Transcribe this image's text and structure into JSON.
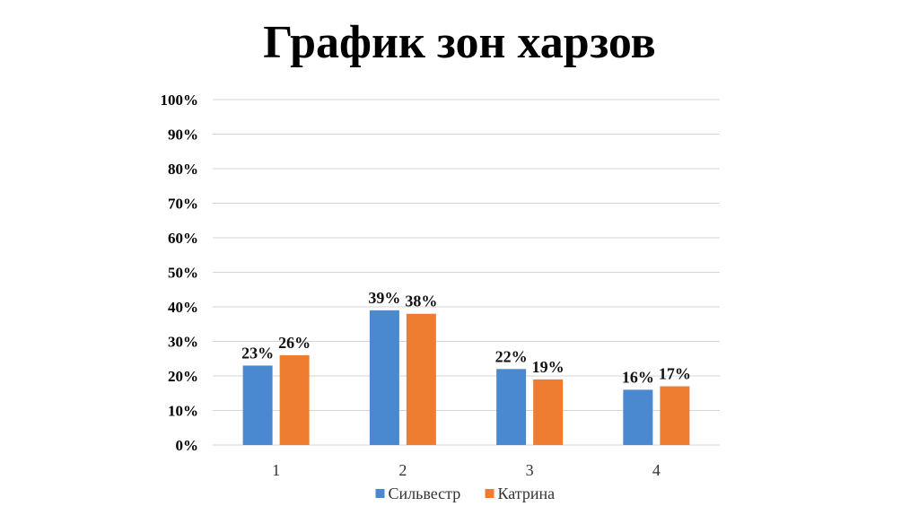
{
  "chart_data": {
    "type": "bar",
    "title": "График зон харзов",
    "xlabel": "",
    "ylabel": "",
    "categories": [
      "1",
      "2",
      "3",
      "4"
    ],
    "series": [
      {
        "name": "Сильвестр",
        "values": [
          23,
          39,
          22,
          16
        ],
        "color": "#4a89cf"
      },
      {
        "name": "Катрина",
        "values": [
          26,
          38,
          19,
          17
        ],
        "color": "#ee7d32"
      }
    ],
    "ylim": [
      0,
      100
    ],
    "yticks": [
      "0%",
      "10%",
      "20%",
      "30%",
      "40%",
      "50%",
      "60%",
      "70%",
      "80%",
      "90%",
      "100%"
    ],
    "value_suffix": "%",
    "grid": true,
    "legend": "bottom-center"
  }
}
